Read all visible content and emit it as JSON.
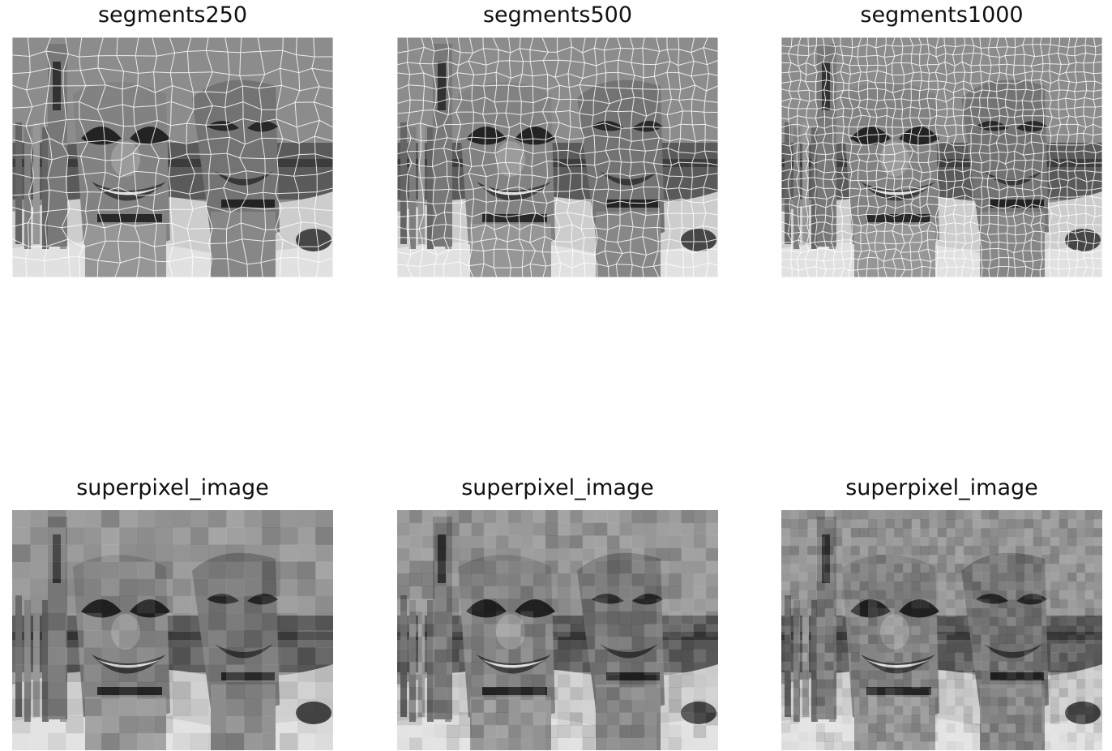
{
  "figure": {
    "panels": [
      {
        "title": "segments250",
        "kind": "segmentation-overlay",
        "segments": 250
      },
      {
        "title": "segments500",
        "kind": "segmentation-overlay",
        "segments": 500
      },
      {
        "title": "segments1000",
        "kind": "segmentation-overlay",
        "segments": 1000
      },
      {
        "title": "superpixel_image",
        "kind": "superpixel-mean",
        "segments": 250
      },
      {
        "title": "superpixel_image",
        "kind": "superpixel-mean",
        "segments": 500
      },
      {
        "title": "superpixel_image",
        "kind": "superpixel-mean",
        "segments": 1000
      }
    ],
    "colors": {
      "background": "#ffffff",
      "title_text": "#111111",
      "boundary_line": "#ffffff"
    }
  }
}
